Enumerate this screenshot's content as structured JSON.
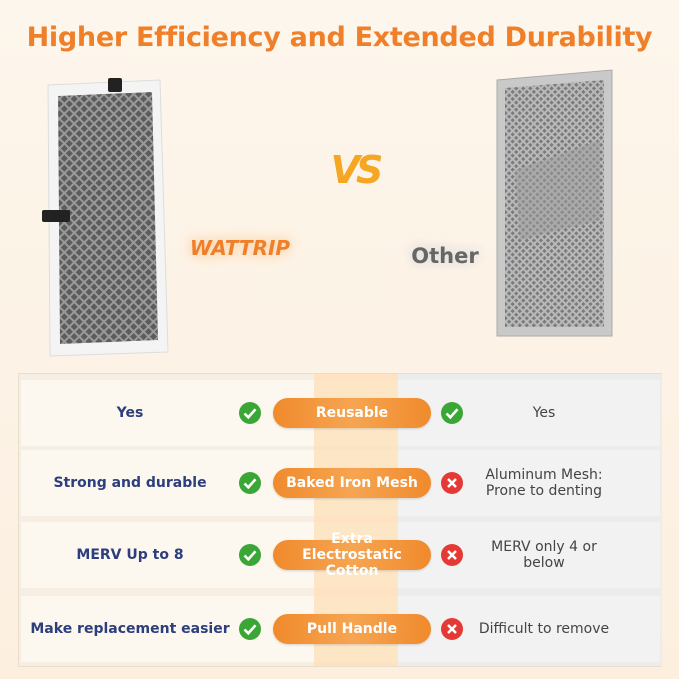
{
  "header": {
    "title": "Higher Efficiency and Extended Durability"
  },
  "comparison": {
    "brand": "WATTRIP",
    "versus": "VS",
    "other": "Other"
  },
  "table": {
    "rows": [
      {
        "left": "Yes",
        "feature": "Reusable",
        "right": "Yes"
      },
      {
        "left": "Strong and durable",
        "feature": "Baked Iron Mesh",
        "right": "Aluminum Mesh: Prone to denting"
      },
      {
        "left": "MERV Up to 8",
        "feature": "Extra Electrostatic Cotton",
        "right": "MERV only 4 or below"
      },
      {
        "left": "Make replacement easier",
        "feature": "Pull Handle",
        "right": "Difficult to remove"
      }
    ]
  }
}
